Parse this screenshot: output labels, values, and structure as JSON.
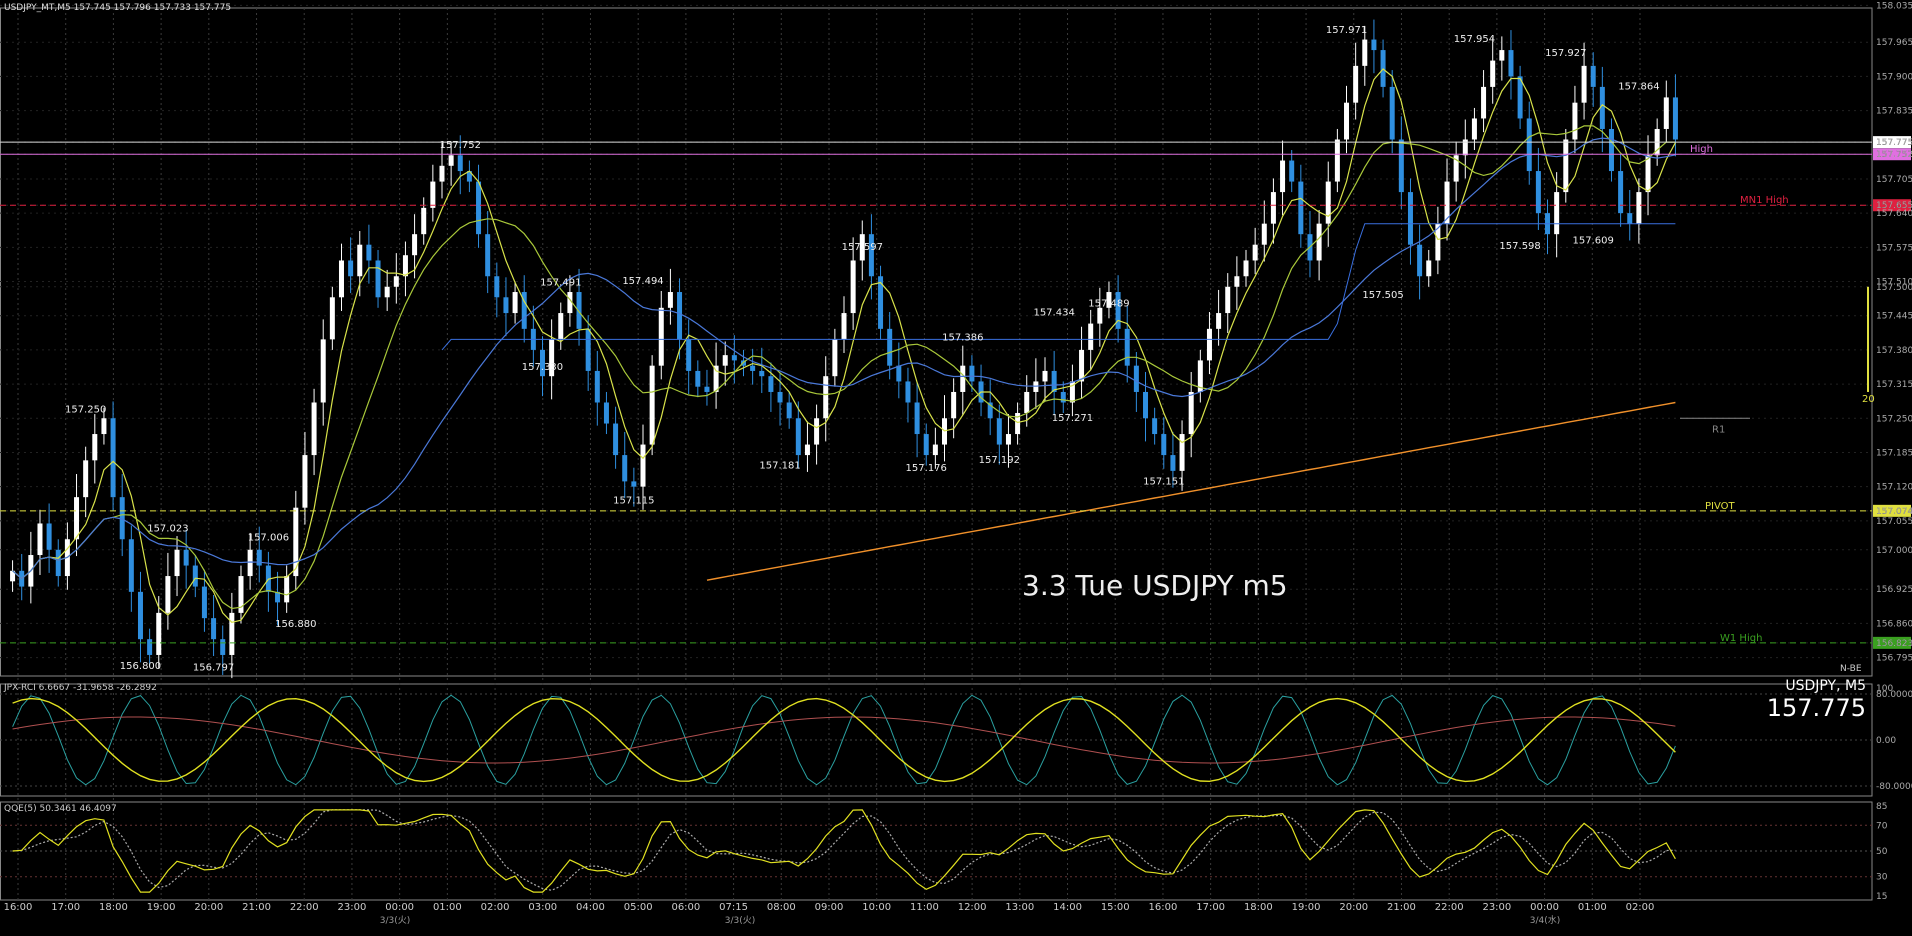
{
  "header": {
    "symbol_info": "USDJPY_MT,M5  157.745 157.796 157.733 157.775"
  },
  "watermark": "3.3 Tue USDJPY m5",
  "panel_readout": {
    "symbol": "USDJPY, M5",
    "price": "157.775"
  },
  "colors": {
    "background": "#000000",
    "grid": "#3a3a3a",
    "bull_candle": "#ffffff",
    "bear_candle": "#2f8fe0",
    "ma_short": "#d8e24a",
    "ma_mid": "#a9c83a",
    "ma_long": "#4a78d8",
    "ma_200": "#f0902a",
    "step_line": "#3a70e0",
    "high_label": "#e070e0",
    "mn1_high": "#e02040",
    "pivot": "#e0e040",
    "w1_high": "#3aa020",
    "r1": "#888888",
    "rci_fast": "#2aa0a0",
    "rci_slow": "#e0e020",
    "rci_mid": "#b05050",
    "qqe_main": "#e0e020",
    "qqe_signal": "#aaaaaa"
  },
  "chart_data": [
    {
      "type": "candlestick",
      "title": "USDJPY_MT,M5",
      "ylim": [
        156.76,
        158.03
      ],
      "y_ticks": [
        "158.035",
        "157.965",
        "157.900",
        "157.835",
        "157.775",
        "157.752",
        "157.705",
        "157.655",
        "157.640",
        "157.575",
        "157.510",
        "157.500",
        "157.445",
        "157.380",
        "157.315",
        "157.250",
        "157.185",
        "157.120",
        "157.074",
        "157.055",
        "157.000",
        "156.925",
        "156.860",
        "156.823",
        "156.795"
      ],
      "x_ticks": [
        "16:00",
        "17:00",
        "18:00",
        "19:00",
        "20:00",
        "21:00",
        "22:00",
        "23:00",
        "00:00",
        "01:00",
        "02:00",
        "03:00",
        "04:00",
        "05:00",
        "06:00",
        "07:15",
        "08:00",
        "09:00",
        "10:00",
        "11:00",
        "12:00",
        "13:00",
        "14:00",
        "15:00",
        "16:00",
        "17:00",
        "18:00",
        "19:00",
        "20:00",
        "21:00",
        "22:00",
        "23:00",
        "00:00",
        "01:00",
        "02:00"
      ],
      "date_labels": [
        "3/3(火)",
        "3/3(火)",
        "3/4(水)"
      ],
      "close_path": [
        156.96,
        156.93,
        156.99,
        157.05,
        157.0,
        156.95,
        157.02,
        157.1,
        157.17,
        157.22,
        157.25,
        157.1,
        157.02,
        156.92,
        156.83,
        156.8,
        156.88,
        156.95,
        157.0,
        156.97,
        156.93,
        156.87,
        156.83,
        156.8,
        156.88,
        156.95,
        157.0,
        156.97,
        156.92,
        156.9,
        156.95,
        157.08,
        157.18,
        157.28,
        157.4,
        157.48,
        157.55,
        157.52,
        157.58,
        157.55,
        157.48,
        157.5,
        157.52,
        157.56,
        157.6,
        157.65,
        157.7,
        157.73,
        157.75,
        157.72,
        157.7,
        157.6,
        157.52,
        157.48,
        157.45,
        157.49,
        157.42,
        157.38,
        157.33,
        157.4,
        157.45,
        157.49,
        157.42,
        157.34,
        157.28,
        157.24,
        157.18,
        157.13,
        157.12,
        157.2,
        157.35,
        157.46,
        157.49,
        157.4,
        157.34,
        157.31,
        157.3,
        157.35,
        157.37,
        157.36,
        157.35,
        157.34,
        157.33,
        157.3,
        157.28,
        157.25,
        157.18,
        157.2,
        157.25,
        157.33,
        157.4,
        157.45,
        157.55,
        157.6,
        157.52,
        157.42,
        157.35,
        157.32,
        157.28,
        157.22,
        157.18,
        157.2,
        157.25,
        157.3,
        157.35,
        157.32,
        157.28,
        157.25,
        157.2,
        157.22,
        157.26,
        157.3,
        157.32,
        157.34,
        157.3,
        157.28,
        157.32,
        157.38,
        157.43,
        157.46,
        157.49,
        157.42,
        157.35,
        157.3,
        157.25,
        157.22,
        157.18,
        157.15,
        157.22,
        157.3,
        157.36,
        157.42,
        157.45,
        157.5,
        157.52,
        157.55,
        157.58,
        157.62,
        157.68,
        157.74,
        157.7,
        157.6,
        157.55,
        157.62,
        157.7,
        157.78,
        157.85,
        157.92,
        157.97,
        157.95,
        157.88,
        157.78,
        157.68,
        157.58,
        157.52,
        157.55,
        157.62,
        157.7,
        157.75,
        157.78,
        157.82,
        157.88,
        157.93,
        157.95,
        157.9,
        157.82,
        157.72,
        157.64,
        157.6,
        157.68,
        157.78,
        157.85,
        157.92,
        157.88,
        157.8,
        157.72,
        157.64,
        157.62,
        157.68,
        157.75,
        157.8,
        157.86,
        157.78
      ]
    },
    {
      "type": "line",
      "title": "JPX-RCI 6.6667 -31.9658 -26.2892",
      "ylim": [
        -80,
        80
      ],
      "y_ticks": [
        "100",
        "80.0000",
        "0.00",
        "-80.0000"
      ]
    },
    {
      "type": "line",
      "title": "QQE(5) 50.3461 46.4097",
      "ylim": [
        15,
        85
      ],
      "y_ticks": [
        "85",
        "70",
        "50",
        "30",
        "15"
      ]
    }
  ],
  "annotations": {
    "price_labels": [
      {
        "text": "157.250",
        "x": 8,
        "y": 157.25
      },
      {
        "text": "157.023",
        "x": 17,
        "y": 157.023
      },
      {
        "text": "157.006",
        "x": 28,
        "y": 157.006
      },
      {
        "text": "156.880",
        "x": 31,
        "y": 156.88
      },
      {
        "text": "156.800",
        "x": 14,
        "y": 156.8
      },
      {
        "text": "156.797",
        "x": 22,
        "y": 156.797
      },
      {
        "text": "157.752",
        "x": 49,
        "y": 157.752
      },
      {
        "text": "157.491",
        "x": 60,
        "y": 157.491
      },
      {
        "text": "157.494",
        "x": 69,
        "y": 157.494
      },
      {
        "text": "157.330",
        "x": 58,
        "y": 157.33
      },
      {
        "text": "157.115",
        "x": 68,
        "y": 157.115
      },
      {
        "text": "157.597",
        "x": 93,
        "y": 157.597
      },
      {
        "text": "157.181",
        "x": 84,
        "y": 157.181
      },
      {
        "text": "157.386",
        "x": 104,
        "y": 157.386
      },
      {
        "text": "157.176",
        "x": 100,
        "y": 157.176
      },
      {
        "text": "157.192",
        "x": 108,
        "y": 157.192
      },
      {
        "text": "157.434",
        "x": 114,
        "y": 157.434
      },
      {
        "text": "157.489",
        "x": 120,
        "y": 157.489
      },
      {
        "text": "157.271",
        "x": 116,
        "y": 157.271
      },
      {
        "text": "157.151",
        "x": 126,
        "y": 157.151
      },
      {
        "text": "157.971",
        "x": 146,
        "y": 157.971
      },
      {
        "text": "157.505",
        "x": 150,
        "y": 157.505
      },
      {
        "text": "157.954",
        "x": 160,
        "y": 157.954
      },
      {
        "text": "157.598",
        "x": 165,
        "y": 157.598
      },
      {
        "text": "157.927",
        "x": 170,
        "y": 157.927
      },
      {
        "text": "157.609",
        "x": 173,
        "y": 157.609
      },
      {
        "text": "157.864",
        "x": 178,
        "y": 157.864
      }
    ],
    "levels": [
      {
        "name": "High",
        "value": 157.752,
        "tag": "157.752"
      },
      {
        "name": "MN1 High",
        "value": 157.655,
        "tag": "157.655"
      },
      {
        "name": "R1",
        "value": 157.25,
        "tag": ""
      },
      {
        "name": "PIVOT",
        "value": 157.074,
        "tag": "157.074"
      },
      {
        "name": "W1 High",
        "value": 156.823,
        "tag": "156.823"
      }
    ],
    "current_price_tag": "157.775",
    "side_number": "20",
    "mini_logo": "N-BE"
  }
}
